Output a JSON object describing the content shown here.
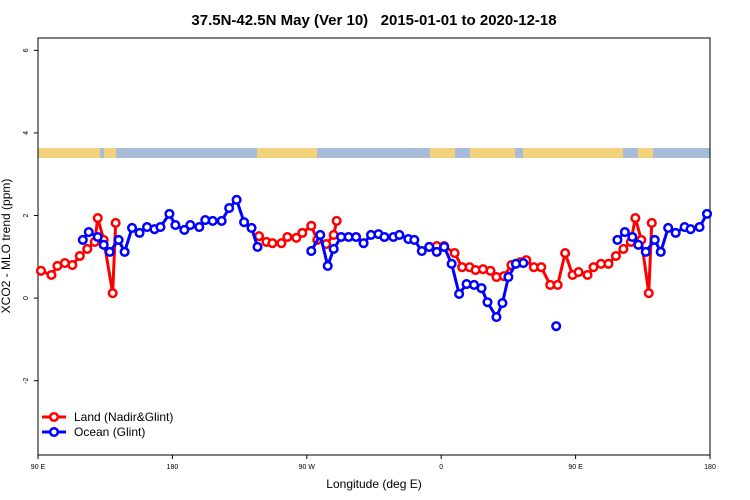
{
  "chart_data": {
    "type": "line",
    "title": "37.5N-42.5N May (Ver 10)   2015-01-01 to 2020-12-18",
    "xlabel": "Longitude (deg E)",
    "ylabel": "XCO2 - MLO trend (ppm)",
    "xlim": [
      90,
      540
    ],
    "ylim": [
      -3.8,
      6.3
    ],
    "xticks": [
      {
        "value": 90,
        "label": "90 E"
      },
      180,
      {
        "value": 270,
        "label": "90 W"
      },
      {
        "value": 360,
        "label": "0"
      },
      {
        "value": 450,
        "label": "90 E"
      },
      {
        "value": 540,
        "label": "180"
      }
    ],
    "yticks": [
      -2,
      0,
      2,
      4,
      6
    ],
    "legend": "bottom left",
    "series": [
      {
        "name": "Land (Nadir&Glint)",
        "color": "#ff0000",
        "x": [
          92,
          99,
          103,
          108,
          113,
          118,
          123,
          128,
          130,
          134,
          140,
          142,
          190,
          238,
          243,
          247,
          253,
          257,
          263,
          267,
          273,
          277,
          283,
          288,
          290,
          320,
          352,
          357,
          362,
          369,
          374,
          379,
          383,
          388,
          393,
          397,
          402,
          407,
          413,
          417,
          422,
          427,
          433,
          438,
          443,
          448,
          452,
          458,
          462,
          467,
          472,
          477,
          482,
          487,
          490,
          494,
          499,
          501
        ],
        "values": [
          0.66,
          0.56,
          0.78,
          0.85,
          0.8,
          1.02,
          1.19,
          1.36,
          1.94,
          1.41,
          0.12,
          1.82,
          null,
          1.5,
          1.36,
          1.33,
          1.33,
          1.48,
          1.46,
          1.58,
          1.75,
          1.41,
          1.31,
          1.53,
          1.87,
          null,
          1.24,
          1.26,
          1.26,
          1.09,
          0.75,
          0.75,
          0.68,
          0.7,
          0.66,
          0.51,
          0.53,
          0.8,
          0.87,
          0.92,
          0.75,
          0.75,
          0.32,
          0.32,
          1.09,
          0.56,
          0.63,
          0.56,
          0.75,
          0.83,
          0.83,
          1.02,
          1.19,
          1.36,
          1.94,
          1.41,
          0.12,
          1.82
        ]
      },
      {
        "name": "Ocean (Glint)",
        "color": "#0000ff",
        "x": [
          120,
          124,
          130,
          134,
          138,
          144,
          148,
          153,
          158,
          163,
          168,
          172,
          178,
          182,
          188,
          192,
          198,
          202,
          207,
          213,
          218,
          223,
          228,
          233,
          237,
          255,
          273,
          279,
          284,
          288,
          293,
          298,
          303,
          308,
          313,
          318,
          322,
          328,
          332,
          338,
          342,
          347,
          352,
          357,
          362,
          367,
          372,
          377,
          382,
          387,
          391,
          397,
          401,
          405,
          410,
          415,
          425,
          437,
          470,
          478,
          483,
          488,
          492,
          497,
          503,
          507,
          512,
          517,
          523,
          527,
          533,
          538
        ],
        "values": [
          1.41,
          1.6,
          1.48,
          1.29,
          1.12,
          1.41,
          1.12,
          1.7,
          1.58,
          1.72,
          1.67,
          1.72,
          2.04,
          1.77,
          1.65,
          1.77,
          1.72,
          1.89,
          1.87,
          1.87,
          2.18,
          2.38,
          1.84,
          1.7,
          1.24,
          null,
          1.14,
          1.53,
          0.78,
          1.19,
          1.48,
          1.48,
          1.48,
          1.33,
          1.53,
          1.55,
          1.48,
          1.48,
          1.53,
          1.43,
          1.41,
          1.14,
          1.24,
          1.12,
          1.24,
          0.83,
          0.1,
          0.34,
          0.32,
          0.24,
          -0.1,
          -0.46,
          -0.12,
          0.51,
          0.83,
          0.85,
          null,
          -0.68,
          null,
          1.41,
          1.6,
          1.48,
          1.29,
          1.12,
          1.41,
          1.12,
          1.7,
          1.58,
          1.72,
          1.67,
          1.72,
          2.04
        ]
      }
    ]
  }
}
